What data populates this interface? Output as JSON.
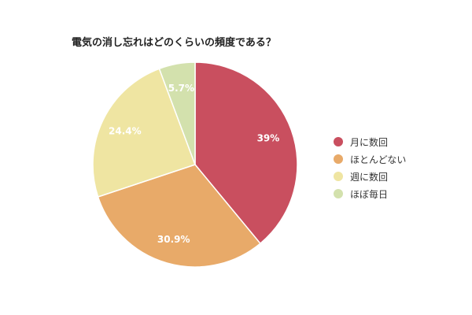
{
  "chart_data": {
    "type": "pie",
    "title": "電気の消し忘れはどのくらいの頻度である？",
    "categories": [
      "月に数回",
      "ほとんどない",
      "週に数回",
      "ほぼ毎日"
    ],
    "values": [
      39,
      30.9,
      24.4,
      5.7
    ],
    "value_labels": [
      "39%",
      "30.9%",
      "24.4%",
      "5.7%"
    ],
    "colors": [
      "#C94F5F",
      "#E8AA69",
      "#EFE5A2",
      "#D3E1AD"
    ],
    "legend_position": "right",
    "start_angle": "top, clockwise"
  }
}
